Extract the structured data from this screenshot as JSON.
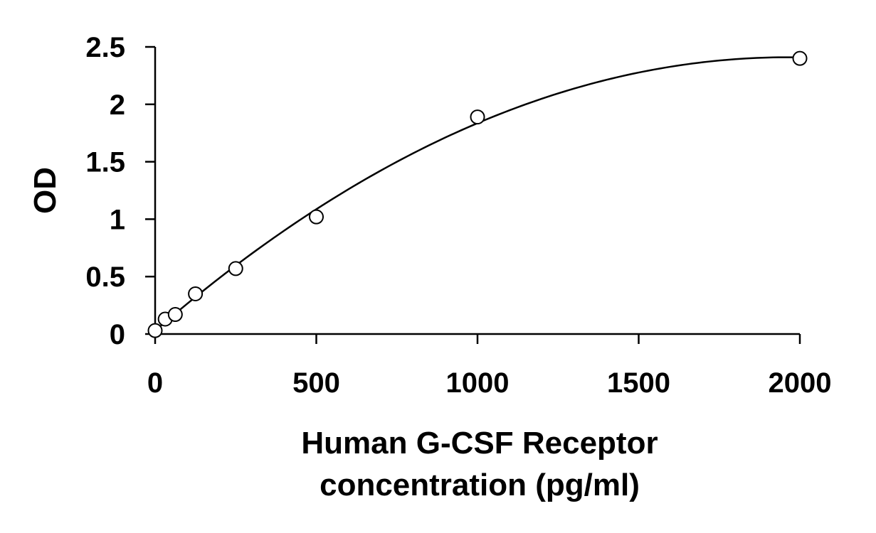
{
  "chart_data": {
    "type": "scatter",
    "title": "",
    "xlabel_lines": [
      "Human G-CSF Receptor",
      "concentration (pg/ml)"
    ],
    "ylabel": "OD",
    "xlim": [
      0,
      2000
    ],
    "ylim": [
      0,
      2.5
    ],
    "xticks": [
      0,
      500,
      1000,
      1500,
      2000
    ],
    "xtick_labels": [
      "0",
      "500",
      "1000",
      "1500",
      "2000"
    ],
    "yticks": [
      0,
      0.5,
      1,
      1.5,
      2,
      2.5
    ],
    "ytick_labels": [
      "0",
      "0.5",
      "1",
      "1.5",
      "2",
      "2.5"
    ],
    "grid": false,
    "legend": "none",
    "series": [
      {
        "points": [
          {
            "x": 0,
            "y": 0.03
          },
          {
            "x": 31.25,
            "y": 0.13
          },
          {
            "x": 62.5,
            "y": 0.17
          },
          {
            "x": 125,
            "y": 0.35
          },
          {
            "x": 250,
            "y": 0.57
          },
          {
            "x": 500,
            "y": 1.02
          },
          {
            "x": 1000,
            "y": 1.89
          },
          {
            "x": 2000,
            "y": 2.4
          }
        ],
        "marker": "open-circle",
        "trendline": "polynomial-2",
        "color": "#000000"
      }
    ]
  }
}
